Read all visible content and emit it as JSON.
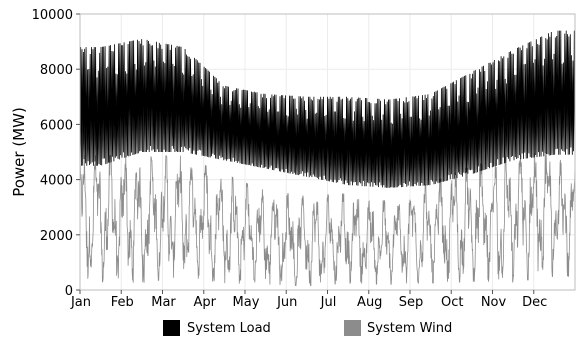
{
  "chart_data": {
    "type": "area",
    "title": "",
    "xlabel": "",
    "ylabel": "Power (MW)",
    "ylim": [
      0,
      10000
    ],
    "y_ticks": [
      0,
      2000,
      4000,
      6000,
      8000,
      10000
    ],
    "x_ticks": [
      "Jan",
      "Feb",
      "Mar",
      "Apr",
      "May",
      "Jun",
      "Jul",
      "Aug",
      "Sep",
      "Oct",
      "Nov",
      "Dec"
    ],
    "grid": true,
    "legend_position": "bottom",
    "months": [
      "Jan",
      "Feb",
      "Mar",
      "Apr",
      "May",
      "Jun",
      "Jul",
      "Aug",
      "Sep",
      "Oct",
      "Nov",
      "Dec"
    ],
    "series": [
      {
        "name": "System Load",
        "color": "#000000",
        "daily_min": [
          4500,
          5000,
          5000,
          4700,
          4400,
          4100,
          3800,
          3700,
          3800,
          4200,
          4700,
          4900
        ],
        "daily_max": [
          8800,
          9100,
          8800,
          7400,
          7100,
          7000,
          7000,
          6900,
          7100,
          7900,
          8700,
          9400
        ]
      },
      {
        "name": "System Wind",
        "color": "#8c8c8c",
        "monthly_min": [
          300,
          250,
          500,
          250,
          200,
          150,
          250,
          200,
          250,
          300,
          300,
          500
        ],
        "monthly_max": [
          4900,
          4800,
          4900,
          4200,
          3600,
          3400,
          3500,
          3200,
          3900,
          4500,
          4900,
          5000
        ]
      }
    ]
  }
}
